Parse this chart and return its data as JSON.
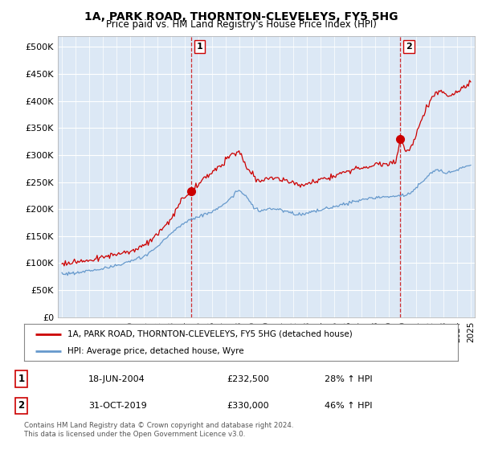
{
  "title": "1A, PARK ROAD, THORNTON-CLEVELEYS, FY5 5HG",
  "subtitle": "Price paid vs. HM Land Registry's House Price Index (HPI)",
  "ylabel_ticks": [
    "£0",
    "£50K",
    "£100K",
    "£150K",
    "£200K",
    "£250K",
    "£300K",
    "£350K",
    "£400K",
    "£450K",
    "£500K"
  ],
  "ytick_vals": [
    0,
    50000,
    100000,
    150000,
    200000,
    250000,
    300000,
    350000,
    400000,
    450000,
    500000
  ],
  "ylim": [
    0,
    520000
  ],
  "xlim_start": 1994.7,
  "xlim_end": 2025.3,
  "marker1_x": 2004.47,
  "marker1_y": 232500,
  "marker2_x": 2019.83,
  "marker2_y": 330000,
  "legend_line1": "1A, PARK ROAD, THORNTON-CLEVELEYS, FY5 5HG (detached house)",
  "legend_line2": "HPI: Average price, detached house, Wyre",
  "table_row1": [
    "1",
    "18-JUN-2004",
    "£232,500",
    "28% ↑ HPI"
  ],
  "table_row2": [
    "2",
    "31-OCT-2019",
    "£330,000",
    "46% ↑ HPI"
  ],
  "footer": "Contains HM Land Registry data © Crown copyright and database right 2024.\nThis data is licensed under the Open Government Licence v3.0.",
  "line_color_house": "#cc0000",
  "line_color_hpi": "#6699cc",
  "vline_color": "#cc0000",
  "background_plot": "#dce8f5",
  "background_fig": "#ffffff",
  "grid_color": "#ffffff"
}
